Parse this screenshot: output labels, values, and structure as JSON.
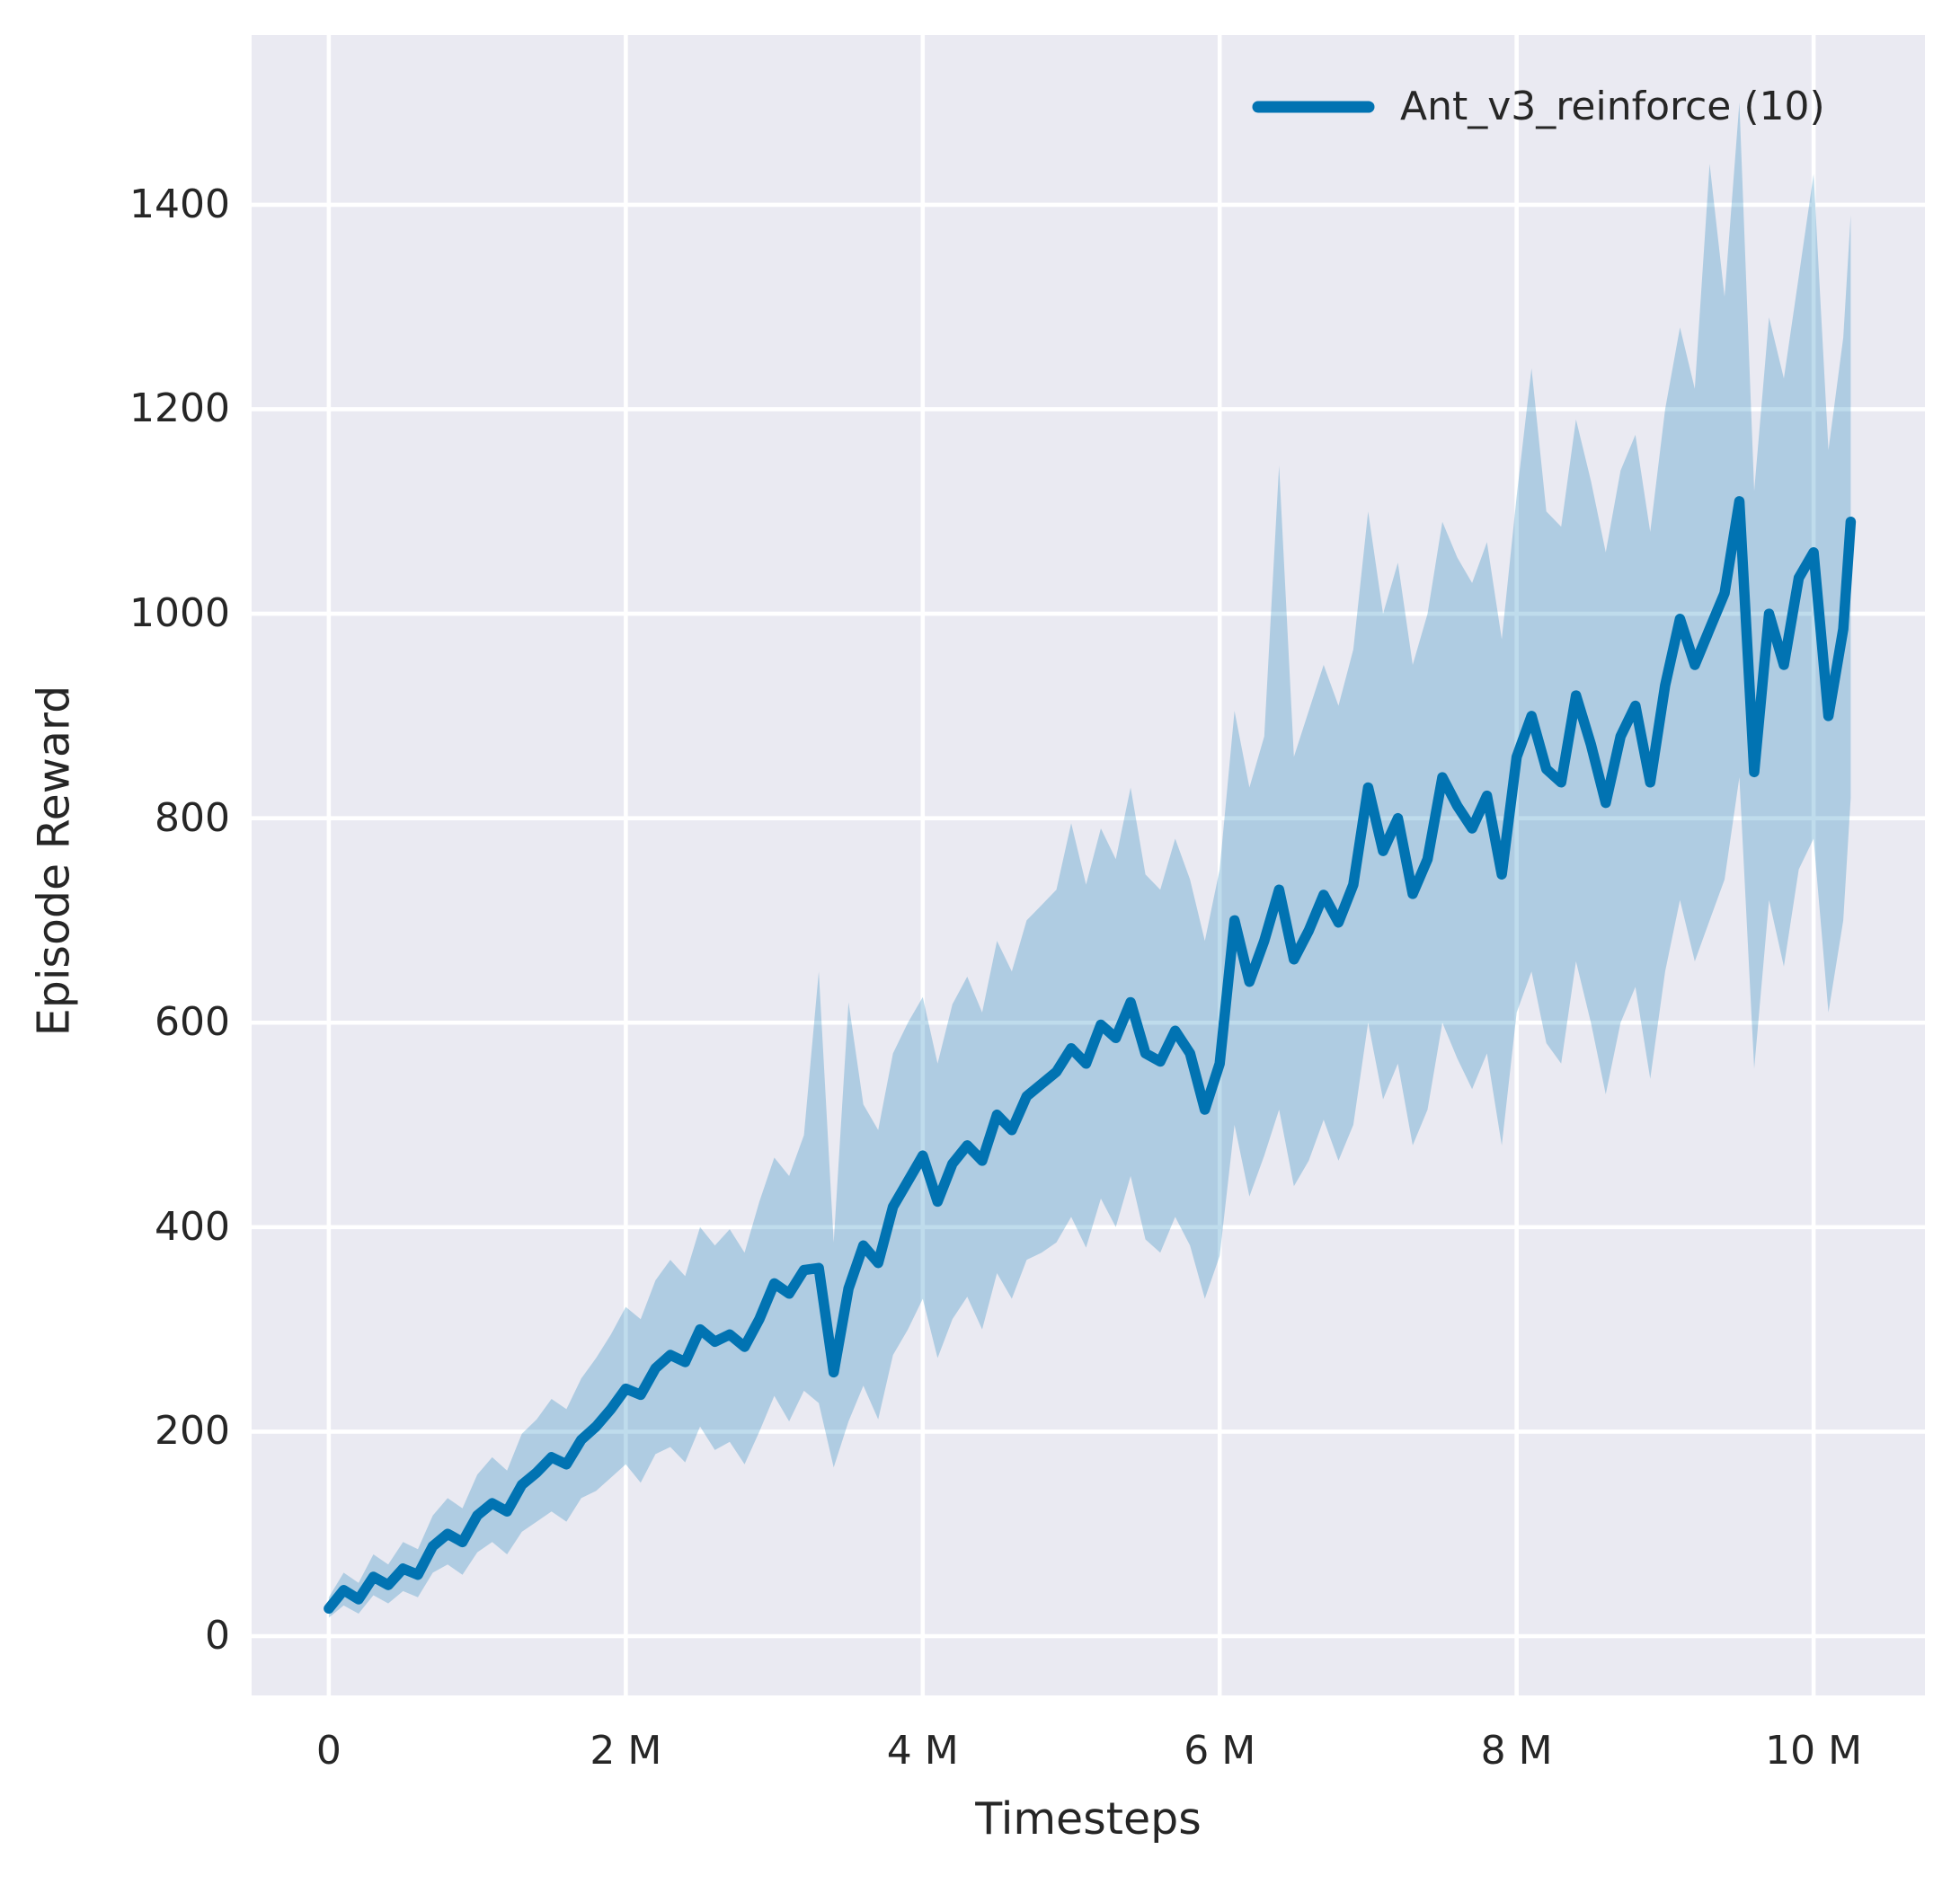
{
  "figure": {
    "background": "#ffffff",
    "plot_background": "#eaeaf2",
    "grid_color": "#ffffff",
    "text_color": "#262626"
  },
  "legend": {
    "label": "Ant_v3_reinforce (10)",
    "line_color": "#0173b2"
  },
  "chart_data": {
    "type": "line",
    "title": "",
    "xlabel": "Timesteps",
    "ylabel": "Episode Reward",
    "x_unit": "millions_of_timesteps",
    "xlim": [
      -0.52,
      10.75
    ],
    "ylim": [
      -58,
      1566
    ],
    "grid": true,
    "legend_position": "upper right",
    "x_ticks": [
      {
        "value": 0,
        "label": "0"
      },
      {
        "value": 2,
        "label": "2 M"
      },
      {
        "value": 4,
        "label": "4 M"
      },
      {
        "value": 6,
        "label": "6 M"
      },
      {
        "value": 8,
        "label": "8 M"
      },
      {
        "value": 10,
        "label": "10 M"
      }
    ],
    "y_ticks": [
      {
        "value": 0,
        "label": "0"
      },
      {
        "value": 200,
        "label": "200"
      },
      {
        "value": 400,
        "label": "400"
      },
      {
        "value": 600,
        "label": "600"
      },
      {
        "value": 800,
        "label": "800"
      },
      {
        "value": 1000,
        "label": "1000"
      },
      {
        "value": 1200,
        "label": "1200"
      },
      {
        "value": 1400,
        "label": "1400"
      }
    ],
    "series": [
      {
        "name": "Ant_v3_reinforce (10)",
        "color": "#0173b2",
        "line_width": 11.5,
        "band_opacity": 0.25,
        "x": [
          0.0,
          0.1,
          0.2,
          0.3,
          0.4,
          0.5,
          0.6,
          0.7,
          0.8,
          0.9,
          1.0,
          1.1,
          1.2,
          1.3,
          1.4,
          1.5,
          1.6,
          1.7,
          1.8,
          1.9,
          2.0,
          2.1,
          2.2,
          2.3,
          2.4,
          2.5,
          2.6,
          2.7,
          2.8,
          2.9,
          3.0,
          3.1,
          3.2,
          3.3,
          3.4,
          3.5,
          3.6,
          3.7,
          3.8,
          3.9,
          4.0,
          4.1,
          4.2,
          4.3,
          4.4,
          4.5,
          4.6,
          4.7,
          4.8,
          4.9,
          5.0,
          5.1,
          5.2,
          5.3,
          5.4,
          5.5,
          5.6,
          5.7,
          5.8,
          5.9,
          6.0,
          6.1,
          6.2,
          6.3,
          6.4,
          6.5,
          6.6,
          6.7,
          6.8,
          6.9,
          7.0,
          7.1,
          7.2,
          7.3,
          7.4,
          7.5,
          7.6,
          7.7,
          7.8,
          7.9,
          8.0,
          8.1,
          8.2,
          8.3,
          8.4,
          8.5,
          8.6,
          8.7,
          8.8,
          8.9,
          9.0,
          9.1,
          9.2,
          9.3,
          9.4,
          9.5,
          9.6,
          9.7,
          9.8,
          9.9,
          10.0,
          10.1,
          10.2,
          10.25
        ],
        "mean": [
          27,
          45,
          36,
          58,
          50,
          66,
          60,
          88,
          100,
          92,
          118,
          130,
          122,
          148,
          160,
          175,
          168,
          192,
          205,
          222,
          242,
          236,
          262,
          275,
          268,
          300,
          288,
          295,
          283,
          310,
          345,
          335,
          358,
          360,
          258,
          340,
          382,
          365,
          420,
          445,
          470,
          425,
          462,
          480,
          465,
          510,
          495,
          528,
          540,
          552,
          575,
          560,
          598,
          585,
          620,
          570,
          562,
          592,
          570,
          515,
          560,
          700,
          640,
          680,
          730,
          662,
          690,
          725,
          698,
          735,
          830,
          768,
          800,
          726,
          760,
          840,
          812,
          790,
          822,
          745,
          860,
          900,
          848,
          835,
          920,
          872,
          815,
          880,
          910,
          835,
          930,
          995,
          950,
          985,
          1020,
          1110,
          845,
          1000,
          950,
          1035,
          1060,
          900,
          985,
          1090
        ],
        "band_lower": [
          18,
          30,
          22,
          40,
          32,
          44,
          38,
          62,
          70,
          60,
          82,
          92,
          80,
          102,
          112,
          122,
          112,
          135,
          142,
          155,
          168,
          150,
          178,
          185,
          170,
          205,
          182,
          190,
          168,
          200,
          235,
          210,
          240,
          228,
          165,
          210,
          245,
          212,
          275,
          300,
          330,
          272,
          310,
          332,
          300,
          355,
          330,
          368,
          375,
          385,
          410,
          380,
          428,
          400,
          450,
          388,
          375,
          410,
          382,
          330,
          372,
          500,
          430,
          470,
          515,
          440,
          465,
          505,
          465,
          500,
          600,
          525,
          560,
          480,
          515,
          600,
          565,
          535,
          570,
          480,
          610,
          650,
          580,
          560,
          660,
          600,
          530,
          600,
          635,
          545,
          650,
          720,
          660,
          700,
          740,
          840,
          555,
          720,
          655,
          750,
          780,
          610,
          700,
          820
        ],
        "band_upper": [
          38,
          62,
          52,
          80,
          70,
          92,
          85,
          118,
          135,
          125,
          158,
          175,
          162,
          198,
          212,
          232,
          222,
          252,
          272,
          295,
          322,
          310,
          348,
          368,
          352,
          400,
          382,
          398,
          375,
          425,
          468,
          450,
          490,
          650,
          385,
          620,
          520,
          495,
          570,
          600,
          625,
          560,
          618,
          645,
          610,
          680,
          650,
          700,
          715,
          730,
          795,
          735,
          790,
          760,
          830,
          745,
          730,
          780,
          740,
          680,
          750,
          905,
          830,
          880,
          1145,
          860,
          905,
          950,
          910,
          965,
          1100,
          1000,
          1050,
          950,
          1000,
          1090,
          1055,
          1030,
          1070,
          975,
          1115,
          1240,
          1100,
          1085,
          1190,
          1130,
          1060,
          1140,
          1175,
          1080,
          1200,
          1280,
          1220,
          1440,
          1310,
          1500,
          1120,
          1290,
          1230,
          1330,
          1430,
          1160,
          1270,
          1390
        ]
      }
    ]
  }
}
